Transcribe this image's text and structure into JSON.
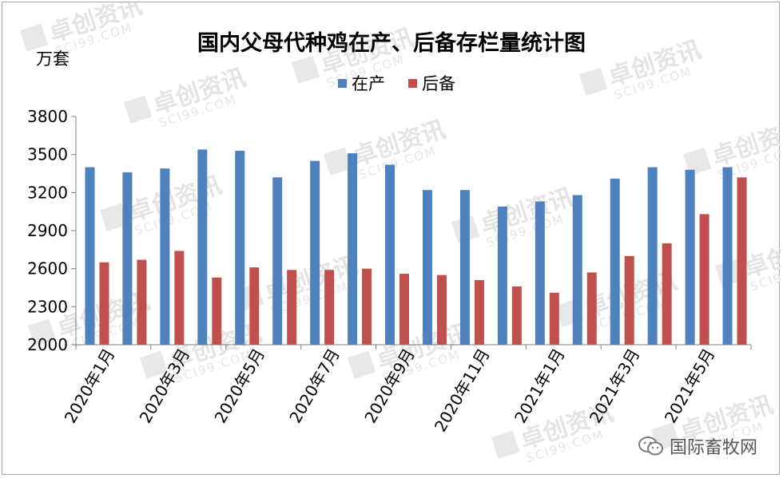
{
  "chart_data": {
    "type": "bar",
    "title": "国内父母代种鸡在产、后备存栏量统计图",
    "ylabel": "万套",
    "ylim": [
      2000,
      3800
    ],
    "yticks": [
      2000,
      2300,
      2600,
      2900,
      3200,
      3500,
      3800
    ],
    "legend_position": "top-center",
    "grid": false,
    "categories": [
      "2020年1月",
      "2020年2月",
      "2020年3月",
      "2020年4月",
      "2020年5月",
      "2020年6月",
      "2020年7月",
      "2020年8月",
      "2020年9月",
      "2020年10月",
      "2020年11月",
      "2020年12月",
      "2021年1月",
      "2021年2月",
      "2021年3月",
      "2021年4月",
      "2021年5月",
      "2021年6月"
    ],
    "tick_labels": [
      "2020年1月",
      "2020年3月",
      "2020年5月",
      "2020年7月",
      "2020年9月",
      "2020年11月",
      "2021年1月",
      "2021年3月",
      "2021年5月"
    ],
    "series": [
      {
        "name": "在产",
        "color": "#4f81bd",
        "values": [
          3400,
          3360,
          3390,
          3540,
          3530,
          3320,
          3450,
          3510,
          3420,
          3220,
          3220,
          3090,
          3130,
          3180,
          3310,
          3400,
          3380,
          3400
        ]
      },
      {
        "name": "后备",
        "color": "#c0504d",
        "values": [
          2650,
          2670,
          2740,
          2530,
          2610,
          2590,
          2590,
          2600,
          2560,
          2550,
          2510,
          2460,
          2410,
          2570,
          2700,
          2800,
          3030,
          3320
        ]
      }
    ]
  },
  "watermark": {
    "brand": "卓创资讯",
    "site": "SCI99.COM"
  },
  "footer": {
    "source_label": "国际畜牧网"
  }
}
